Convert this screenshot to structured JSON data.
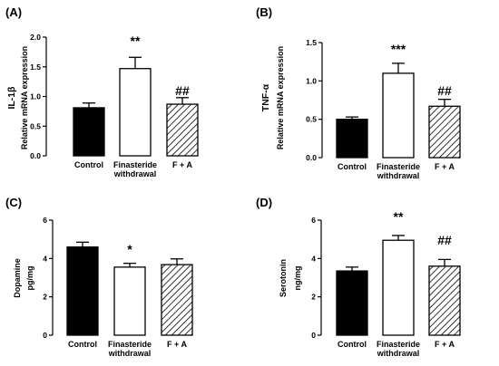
{
  "chart_data": [
    {
      "id": "A",
      "type": "bar",
      "panel_label": "(A)",
      "ylabel": [
        "IL-1β",
        "Relative mRNA expression"
      ],
      "ylim": [
        0,
        2.0
      ],
      "yticks": [
        0.0,
        0.5,
        1.0,
        1.5,
        2.0
      ],
      "ytick_labels": [
        "0.0",
        "0.5",
        "1.0",
        "1.5",
        "2.0"
      ],
      "categories": [
        [
          "Control"
        ],
        [
          "Finasteride",
          "withdrawal"
        ],
        [
          "F + A"
        ]
      ],
      "values": [
        0.81,
        1.47,
        0.87
      ],
      "errors": [
        0.08,
        0.19,
        0.11
      ],
      "annotations": [
        "",
        "**",
        "##"
      ],
      "fills": [
        "solid",
        "white",
        "hatch"
      ]
    },
    {
      "id": "B",
      "type": "bar",
      "panel_label": "(B)",
      "ylabel": [
        "TNF-α",
        "Relative mRNA expression"
      ],
      "ylim": [
        0,
        1.5
      ],
      "yticks": [
        0.0,
        0.5,
        1.0,
        1.5
      ],
      "ytick_labels": [
        "0.0",
        "0.5",
        "1.0",
        "1.5"
      ],
      "categories": [
        [
          "Control"
        ],
        [
          "Finasteride",
          "withdrawal"
        ],
        [
          "F + A"
        ]
      ],
      "values": [
        0.5,
        1.1,
        0.67
      ],
      "errors": [
        0.03,
        0.13,
        0.09
      ],
      "annotations": [
        "",
        "***",
        "##"
      ],
      "fills": [
        "solid",
        "white",
        "hatch"
      ]
    },
    {
      "id": "C",
      "type": "bar",
      "panel_label": "(C)",
      "ylabel": [
        "Dopamine",
        "pg/mg"
      ],
      "ylim": [
        0,
        6
      ],
      "yticks": [
        0,
        2,
        4,
        6
      ],
      "ytick_labels": [
        "0",
        "2",
        "4",
        "6"
      ],
      "categories": [
        [
          "Control"
        ],
        [
          "Finasteride",
          "withdrawal"
        ],
        [
          "F + A"
        ]
      ],
      "values": [
        4.6,
        3.55,
        3.68
      ],
      "errors": [
        0.25,
        0.2,
        0.3
      ],
      "annotations": [
        "",
        "*",
        ""
      ],
      "fills": [
        "solid",
        "white",
        "hatch"
      ]
    },
    {
      "id": "D",
      "type": "bar",
      "panel_label": "(D)",
      "ylabel": [
        "Serotonin",
        "ng/mg"
      ],
      "ylim": [
        0,
        6
      ],
      "yticks": [
        0,
        2,
        4,
        6
      ],
      "ytick_labels": [
        "0",
        "2",
        "4",
        "6"
      ],
      "categories": [
        [
          "Control"
        ],
        [
          "Finasteride",
          "withdrawal"
        ],
        [
          "F + A"
        ]
      ],
      "values": [
        3.35,
        4.95,
        3.6
      ],
      "errors": [
        0.2,
        0.25,
        0.35
      ],
      "annotations": [
        "",
        "**",
        "##"
      ],
      "fills": [
        "solid",
        "white",
        "hatch"
      ]
    }
  ]
}
